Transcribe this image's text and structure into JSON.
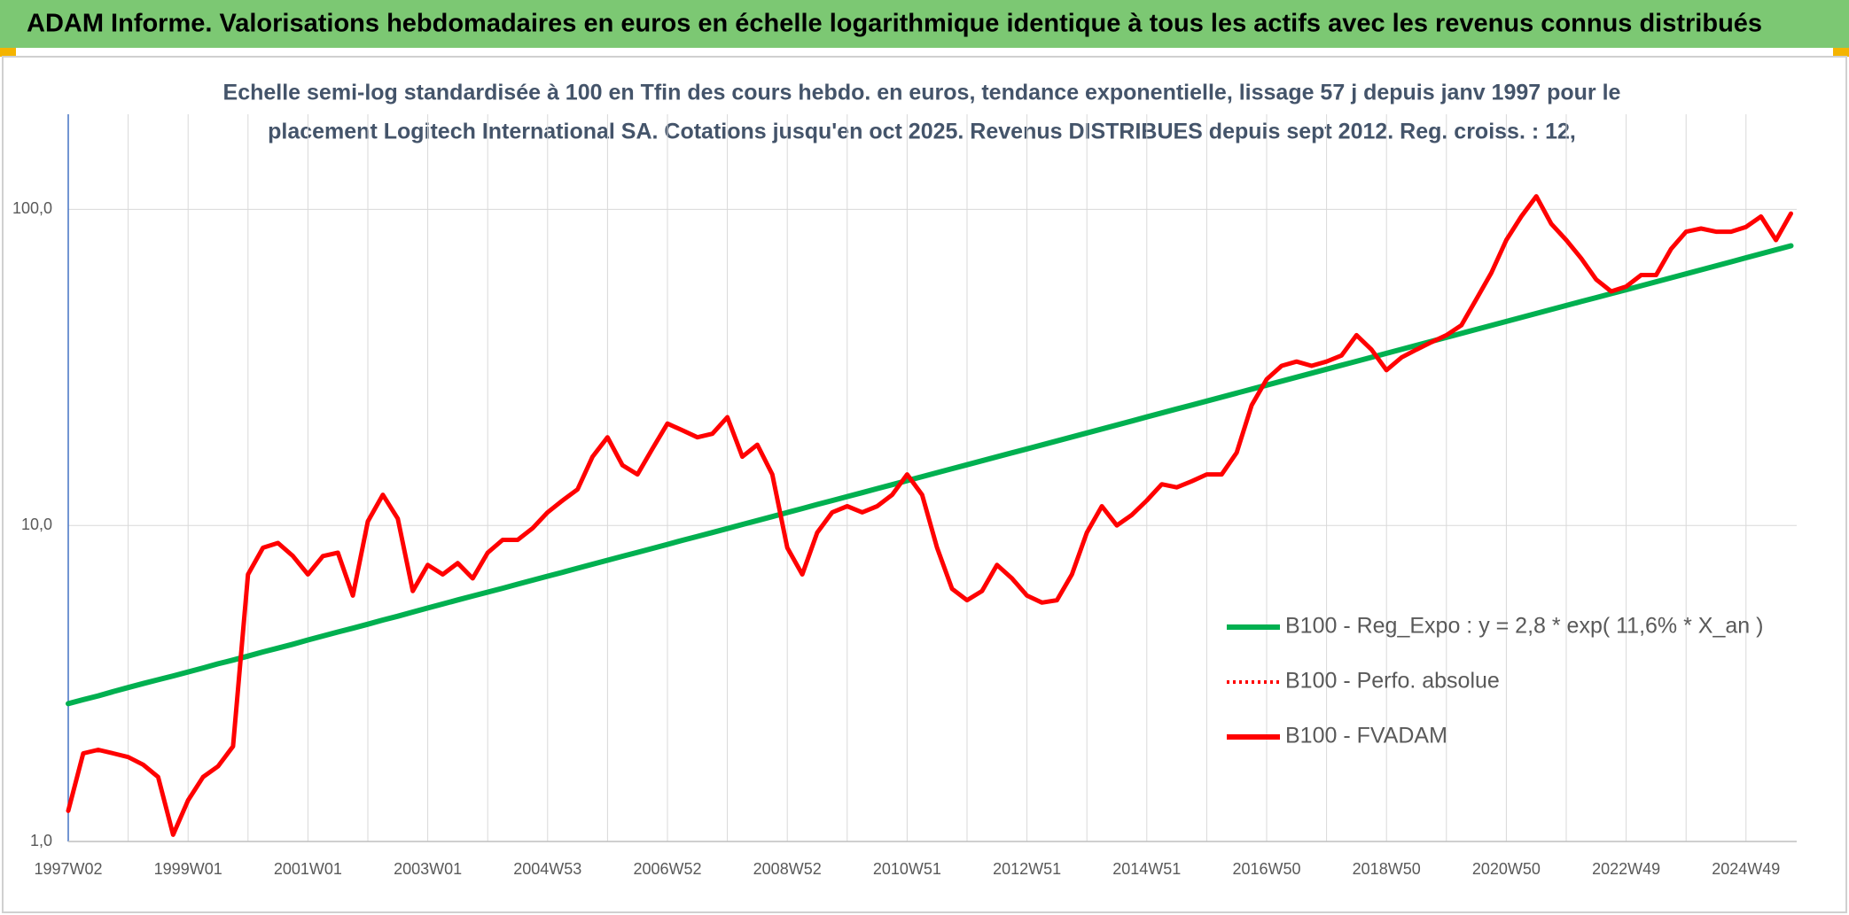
{
  "chart_data": {
    "type": "line",
    "title": "ADAM Informe. Valorisations hebdomadaires en euros en échelle logarithmique identique à tous les actifs avec les revenus connus distribués",
    "subtitle": [
      "Echelle semi-log standardisée à 100 en Tfin des cours hebdo. en euros, tendance exponentielle, lissage 57 j depuis janv 1997 pour le",
      "placement Logitech International SA. Cotations jusqu'en oct 2025. Revenus DISTRIBUES depuis sept 2012. Reg. croiss. : 12,"
    ],
    "yscale": "log",
    "ylim": [
      1,
      200
    ],
    "yticks": [
      {
        "value": 1,
        "label": "1,0"
      },
      {
        "value": 10,
        "label": "10,0"
      },
      {
        "value": 100,
        "label": "100,0"
      }
    ],
    "grid": true,
    "legend": "lower right",
    "categories": [
      "1997W02",
      null,
      null,
      null,
      null,
      null,
      null,
      null,
      "1999W01",
      null,
      null,
      null,
      null,
      null,
      null,
      null,
      "2001W01",
      null,
      null,
      null,
      null,
      null,
      null,
      null,
      "2003W01",
      null,
      null,
      null,
      null,
      null,
      null,
      null,
      "2004W53",
      null,
      null,
      null,
      null,
      null,
      null,
      null,
      "2006W52",
      null,
      null,
      null,
      null,
      null,
      null,
      null,
      "2008W52",
      null,
      null,
      null,
      null,
      null,
      null,
      null,
      "2010W51",
      null,
      null,
      null,
      null,
      null,
      null,
      null,
      "2012W51",
      null,
      null,
      null,
      null,
      null,
      null,
      null,
      "2014W51",
      null,
      null,
      null,
      null,
      null,
      null,
      null,
      "2016W50",
      null,
      null,
      null,
      null,
      null,
      null,
      null,
      "2018W50",
      null,
      null,
      null,
      null,
      null,
      null,
      null,
      "2020W50",
      null,
      null,
      null,
      null,
      null,
      null,
      null,
      "2022W49",
      null,
      null,
      null,
      null,
      null,
      null,
      null,
      "2024W49",
      null,
      null,
      null
    ],
    "series": [
      {
        "name": "B100 - Reg_Expo : y = 2,8 * exp( 11,6% *  X_an )",
        "color": "#00b050",
        "style": "solid",
        "values": [
          2.73,
          2.81,
          2.89,
          2.98,
          3.07,
          3.16,
          3.25,
          3.34,
          3.44,
          3.54,
          3.65,
          3.75,
          3.86,
          3.98,
          4.09,
          4.21,
          4.34,
          4.47,
          4.6,
          4.73,
          4.87,
          5.02,
          5.16,
          5.32,
          5.48,
          5.64,
          5.81,
          5.98,
          6.15,
          6.33,
          6.52,
          6.71,
          6.91,
          7.11,
          7.32,
          7.54,
          7.76,
          7.99,
          8.22,
          8.46,
          8.71,
          8.97,
          9.23,
          9.5,
          9.78,
          10.07,
          10.36,
          10.67,
          10.99,
          11.31,
          11.65,
          11.99,
          12.34,
          12.7,
          13.08,
          13.46,
          13.86,
          14.27,
          14.69,
          15.12,
          15.56,
          16.02,
          16.49,
          16.98,
          17.47,
          17.98,
          18.51,
          19.06,
          19.62,
          20.2,
          20.79,
          21.4,
          22.04,
          22.69,
          23.36,
          24.04,
          24.75,
          25.48,
          26.23,
          27.0,
          27.79,
          28.61,
          29.45,
          30.32,
          31.21,
          32.13,
          33.07,
          34.04,
          35.05,
          36.08,
          37.14,
          38.24,
          39.36,
          40.52,
          41.71,
          42.94,
          44.2,
          45.5,
          46.84,
          48.22,
          49.64,
          51.1,
          52.6,
          54.15,
          55.7,
          57.34,
          59.03,
          60.76,
          62.55,
          64.39,
          66.28,
          68.23,
          70.3,
          72.37,
          74.5,
          76.69
        ]
      },
      {
        "name": "B100 - Perfo. absolue",
        "color": "#ff0000",
        "style": "dotted",
        "values": [
          1.25,
          1.9,
          1.95,
          1.9,
          1.85,
          1.75,
          1.6,
          1.05,
          1.35,
          1.6,
          1.73,
          2.0,
          7.0,
          8.5,
          8.8,
          8.0,
          7.0,
          8.0,
          8.2,
          6.0,
          10.3,
          12.5,
          10.5,
          6.2,
          7.5,
          7.0,
          7.6,
          6.8,
          8.2,
          9.0,
          9.0,
          9.8,
          11,
          12,
          13,
          16.5,
          19,
          15.5,
          14.5,
          17.5,
          21,
          20,
          19,
          19.5,
          22,
          16.5,
          18,
          14.5,
          8.5,
          7.0,
          9.5,
          11,
          11.5,
          11,
          11.5,
          12.5,
          14.5,
          12.5,
          8.5,
          6.3,
          5.8,
          6.2,
          7.5,
          6.8,
          6.0,
          5.7,
          5.8,
          7.0,
          9.5,
          11.5,
          10,
          10.8,
          12,
          13.5,
          13.2,
          13.8,
          14.5,
          14.5,
          17,
          24,
          29,
          32,
          33,
          32,
          33,
          34.5,
          40,
          36,
          31,
          34,
          36,
          38,
          40,
          43,
          52,
          63,
          80,
          95,
          110,
          90,
          80,
          70,
          60,
          55,
          57,
          62,
          62,
          75,
          85,
          87,
          85,
          85,
          88,
          95,
          80,
          97
        ]
      },
      {
        "name": "B100 - FVADAM",
        "color": "#ff0000",
        "style": "solid",
        "values": [
          1.25,
          1.9,
          1.95,
          1.9,
          1.85,
          1.75,
          1.6,
          1.05,
          1.35,
          1.6,
          1.73,
          2.0,
          7.0,
          8.5,
          8.8,
          8.0,
          7.0,
          8.0,
          8.2,
          6.0,
          10.3,
          12.5,
          10.5,
          6.2,
          7.5,
          7.0,
          7.6,
          6.8,
          8.2,
          9.0,
          9.0,
          9.8,
          11,
          12,
          13,
          16.5,
          19,
          15.5,
          14.5,
          17.5,
          21,
          20,
          19,
          19.5,
          22,
          16.5,
          18,
          14.5,
          8.5,
          7.0,
          9.5,
          11,
          11.5,
          11,
          11.5,
          12.5,
          14.5,
          12.5,
          8.5,
          6.3,
          5.8,
          6.2,
          7.5,
          6.8,
          6.0,
          5.7,
          5.8,
          7.0,
          9.5,
          11.5,
          10,
          10.8,
          12,
          13.5,
          13.2,
          13.8,
          14.5,
          14.5,
          17,
          24,
          29,
          32,
          33,
          32,
          33,
          34.5,
          40,
          36,
          31,
          34,
          36,
          38,
          40,
          43,
          52,
          63,
          80,
          95,
          110,
          90,
          80,
          70,
          60,
          55,
          57,
          62,
          62,
          75,
          85,
          87,
          85,
          85,
          88,
          95,
          80,
          97
        ]
      }
    ]
  }
}
